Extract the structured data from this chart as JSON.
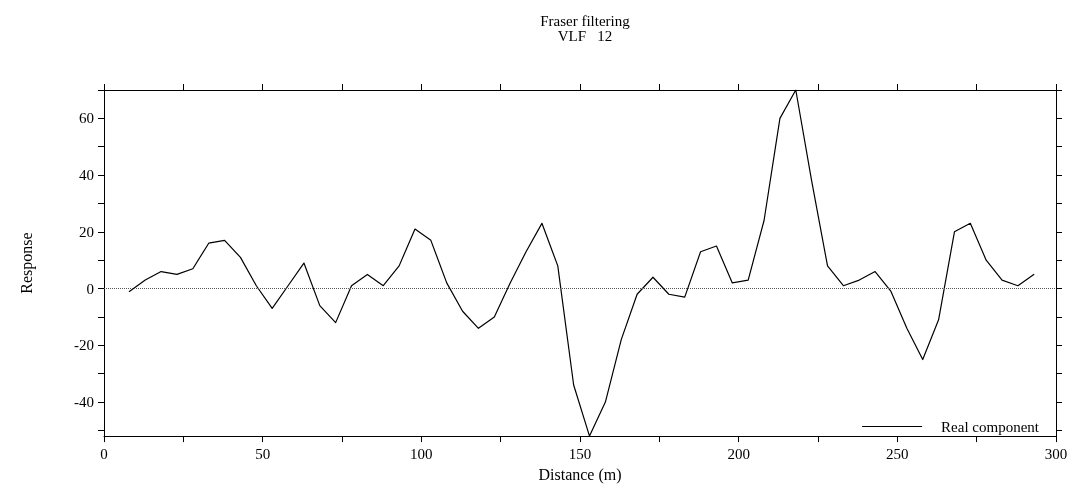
{
  "chart_data": {
    "type": "line",
    "title": "Fraser filtering",
    "subtitle": "VLF   12",
    "xlabel": "Distance (m)",
    "ylabel": "Response",
    "x": [
      8,
      13,
      18,
      23,
      28,
      33,
      38,
      43,
      48,
      53,
      58,
      63,
      68,
      73,
      78,
      83,
      88,
      93,
      98,
      103,
      108,
      113,
      118,
      123,
      128,
      133,
      138,
      143,
      148,
      153,
      158,
      163,
      168,
      173,
      178,
      183,
      188,
      193,
      198,
      203,
      208,
      213,
      218,
      223,
      228,
      233,
      238,
      243,
      248,
      253,
      258,
      263,
      268,
      273,
      278,
      283,
      288,
      293
    ],
    "series": [
      {
        "name": "Real component",
        "color": "#000000",
        "values": [
          -1,
          3,
          6,
          5,
          7,
          16,
          17,
          11,
          1,
          -7,
          1,
          9,
          -6,
          -12,
          1,
          5,
          1,
          8,
          21,
          17,
          2,
          -8,
          -14,
          -10,
          2,
          13,
          23,
          8,
          -34,
          -52,
          -40,
          -18,
          -2,
          4,
          -2,
          -3,
          13,
          15,
          2,
          3,
          24,
          60,
          70,
          38,
          8,
          1,
          3,
          6,
          -1,
          -14,
          -25,
          -11,
          20,
          23,
          10,
          3,
          1,
          5
        ]
      }
    ],
    "xlim": [
      0,
      300
    ],
    "xticks": [
      0,
      {
        "value": 25,
        "label": null
      },
      50,
      {
        "value": 75,
        "label": null
      },
      100,
      {
        "value": 125,
        "label": null
      },
      150,
      {
        "value": 175,
        "label": null
      },
      200,
      {
        "value": 225,
        "label": null
      },
      250,
      {
        "value": 275,
        "label": null
      },
      300
    ],
    "ylim": [
      -52,
      70
    ],
    "yticks": [
      {
        "value": -50,
        "label": null
      },
      -40,
      {
        "value": -30,
        "label": null
      },
      -20,
      {
        "value": -10,
        "label": null
      },
      0,
      {
        "value": 10,
        "label": null
      },
      20,
      {
        "value": 30,
        "label": null
      },
      40,
      {
        "value": 50,
        "label": null
      },
      60,
      {
        "value": 70,
        "label": null
      }
    ],
    "ref_lines": [
      {
        "axis": "y",
        "value": 0,
        "label": null,
        "color": "#555555",
        "line_style": "dotted"
      }
    ],
    "grid": false,
    "legend": "bottom right",
    "marker": "none",
    "line_style": "solid"
  }
}
